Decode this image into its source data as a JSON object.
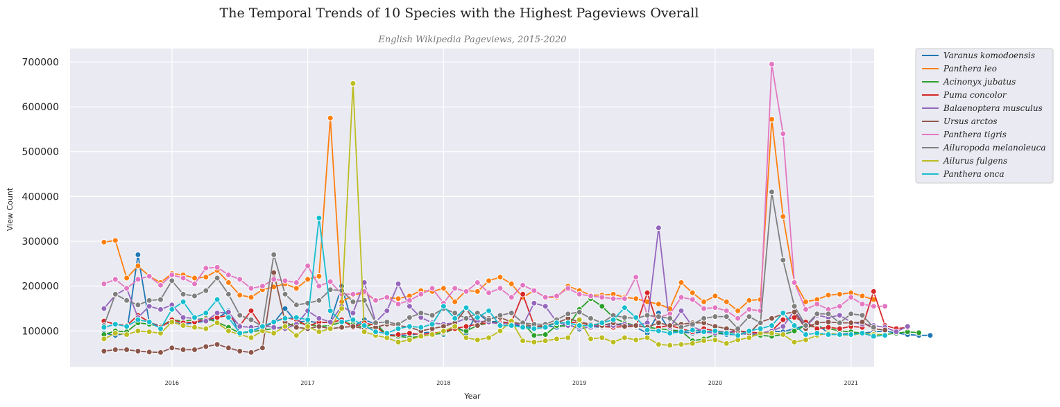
{
  "chart_data": {
    "type": "line",
    "title": "The Temporal Trends of 10 Species with the Highest Pageviews Overall",
    "subtitle": "English Wikipedia Pageviews, 2015-2020",
    "xlabel": "Year",
    "ylabel": "View Count",
    "xlim": [
      2015.25,
      2021.17
    ],
    "ylim": [
      20000,
      730000
    ],
    "grid": true,
    "legend_position": "outside-top-right",
    "x_start": "2015-07",
    "x_ticks": [
      "2016",
      "2017",
      "2018",
      "2019",
      "2020",
      "2021"
    ],
    "y_ticks": [
      "100000",
      "200000",
      "300000",
      "400000",
      "500000",
      "600000",
      "700000"
    ],
    "series": [
      {
        "name": "Varanus komodoensis",
        "color": "#1f77b4",
        "values": [
          95000,
          90000,
          95000,
          270000,
          118000,
          112000,
          120000,
          115000,
          118000,
          122000,
          128000,
          145000,
          95000,
          100000,
          108000,
          118000,
          150000,
          120000,
          122000,
          118000,
          120000,
          200000,
          110000,
          125000,
          115000,
          92000,
          90000,
          90000,
          95000,
          98000,
          92000,
          112000,
          95000,
          140000,
          120000,
          122000,
          115000,
          110000,
          108000,
          112000,
          108000,
          115000,
          104000,
          110000,
          108000,
          112000,
          118000,
          108000,
          95000,
          140000,
          100000,
          98000,
          95000,
          98000,
          95000,
          92000,
          92000,
          95000,
          94000,
          100000,
          98000,
          105000,
          112000,
          115000,
          95000,
          92000,
          95000,
          95000,
          98000,
          100000,
          95000,
          92000,
          90000,
          90000
        ]
      },
      {
        "name": "Panthera leo",
        "color": "#ff7f0e",
        "values": [
          298000,
          302000,
          218000,
          245000,
          222000,
          208000,
          228000,
          225000,
          218000,
          220000,
          235000,
          208000,
          180000,
          175000,
          192000,
          198000,
          205000,
          195000,
          215000,
          222000,
          575000,
          165000,
          180000,
          185000,
          168000,
          175000,
          172000,
          178000,
          190000,
          188000,
          195000,
          165000,
          190000,
          188000,
          212000,
          220000,
          205000,
          175000,
          190000,
          175000,
          175000,
          200000,
          190000,
          180000,
          180000,
          182000,
          175000,
          172000,
          165000,
          160000,
          150000,
          208000,
          185000,
          165000,
          178000,
          165000,
          145000,
          168000,
          170000,
          572000,
          355000,
          210000,
          165000,
          170000,
          180000,
          182000,
          185000,
          178000,
          170000
        ]
      },
      {
        "name": "Acinonyx jubatus",
        "color": "#2ca02c",
        "values": [
          92000,
          100000,
          98000,
          118000,
          115000,
          110000,
          125000,
          122000,
          125000,
          128000,
          120000,
          108000,
          95000,
          98000,
          102000,
          105000,
          110000,
          118000,
          115000,
          110000,
          112000,
          120000,
          115000,
          108000,
          118000,
          90000,
          88000,
          85000,
          88000,
          92000,
          95000,
          105000,
          100000,
          112000,
          118000,
          120000,
          115000,
          118000,
          90000,
          92000,
          112000,
          110000,
          148000,
          172000,
          155000,
          130000,
          118000,
          112000,
          108000,
          105000,
          102000,
          100000,
          78000,
          82000,
          92000,
          98000,
          95000,
          92000,
          90000,
          88000,
          92000,
          100000,
          112000,
          108000,
          105000,
          100000,
          98000,
          95000,
          92000,
          92000,
          95000,
          98000,
          96000
        ]
      },
      {
        "name": "Puma concolor",
        "color": "#d62728",
        "values": [
          122000,
          115000,
          112000,
          135000,
          120000,
          108000,
          125000,
          118000,
          120000,
          125000,
          130000,
          135000,
          112000,
          145000,
          108000,
          120000,
          130000,
          125000,
          110000,
          120000,
          118000,
          125000,
          108000,
          118000,
          112000,
          88000,
          92000,
          95000,
          92000,
          95000,
          98000,
          105000,
          110000,
          115000,
          118000,
          118000,
          120000,
          182000,
          112000,
          108000,
          118000,
          118000,
          120000,
          112000,
          110000,
          108000,
          110000,
          110000,
          185000,
          108000,
          112000,
          105000,
          98000,
          105000,
          100000,
          98000,
          100000,
          98000,
          95000,
          100000,
          125000,
          130000,
          120000,
          105000,
          108000,
          105000,
          110000,
          108000,
          188000,
          112000,
          105000,
          108000
        ]
      },
      {
        "name": "Balaenoptera musculus",
        "color": "#9467bd",
        "values": [
          150000,
          180000,
          195000,
          130000,
          155000,
          148000,
          158000,
          130000,
          128000,
          122000,
          140000,
          142000,
          110000,
          108000,
          112000,
          108000,
          105000,
          115000,
          145000,
          128000,
          120000,
          155000,
          140000,
          208000,
          120000,
          145000,
          205000,
          155000,
          130000,
          118000,
          115000,
          118000,
          128000,
          122000,
          120000,
          115000,
          118000,
          112000,
          162000,
          155000,
          120000,
          112000,
          108000,
          108000,
          115000,
          112000,
          115000,
          112000,
          118000,
          330000,
          108000,
          145000,
          110000,
          98000,
          95000,
          100000,
          95000,
          92000,
          95000,
          100000,
          110000,
          145000,
          110000,
          135000,
          130000,
          135000,
          120000,
          115000,
          112000,
          108000,
          98000,
          110000
        ]
      },
      {
        "name": "Ursus arctos",
        "color": "#8c564b",
        "values": [
          55000,
          58000,
          58000,
          55000,
          53000,
          52000,
          62000,
          58000,
          58000,
          65000,
          70000,
          62000,
          55000,
          52000,
          62000,
          230000,
          120000,
          108000,
          105000,
          110000,
          105000,
          108000,
          110000,
          105000,
          108000,
          115000,
          112000,
          108000,
          100000,
          105000,
          110000,
          118000,
          150000,
          112000,
          128000,
          130000,
          120000,
          115000,
          110000,
          112000,
          118000,
          128000,
          120000,
          115000,
          112000,
          118000,
          110000,
          112000,
          108000,
          118000,
          112000,
          115000,
          118000,
          118000,
          110000,
          105000,
          100000,
          95000,
          120000,
          128000,
          138000,
          142000,
          105000,
          118000,
          120000,
          118000,
          118000,
          120000,
          105000,
          102000
        ]
      },
      {
        "name": "Panthera tigris",
        "color": "#e377c2",
        "values": [
          205000,
          215000,
          195000,
          215000,
          222000,
          202000,
          225000,
          218000,
          205000,
          240000,
          242000,
          225000,
          215000,
          195000,
          200000,
          215000,
          212000,
          208000,
          245000,
          200000,
          210000,
          182000,
          182000,
          188000,
          168000,
          175000,
          160000,
          168000,
          182000,
          195000,
          162000,
          195000,
          188000,
          208000,
          185000,
          195000,
          175000,
          202000,
          190000,
          175000,
          178000,
          195000,
          182000,
          178000,
          175000,
          172000,
          172000,
          220000,
          135000,
          130000,
          138000,
          175000,
          170000,
          150000,
          152000,
          145000,
          128000,
          148000,
          145000,
          695000,
          540000,
          208000,
          148000,
          160000,
          148000,
          155000,
          175000,
          160000,
          155000,
          155000
        ]
      },
      {
        "name": "Ailuropoda melanoleuca",
        "color": "#7f7f7f",
        "values": [
          112000,
          182000,
          168000,
          158000,
          168000,
          170000,
          212000,
          182000,
          178000,
          190000,
          218000,
          182000,
          135000,
          125000,
          110000,
          270000,
          182000,
          158000,
          162000,
          168000,
          192000,
          190000,
          165000,
          168000,
          118000,
          120000,
          115000,
          130000,
          140000,
          135000,
          150000,
          140000,
          128000,
          140000,
          125000,
          135000,
          140000,
          118000,
          115000,
          115000,
          125000,
          138000,
          142000,
          128000,
          118000,
          135000,
          130000,
          128000,
          135000,
          132000,
          128000,
          108000,
          115000,
          128000,
          132000,
          132000,
          105000,
          132000,
          118000,
          410000,
          258000,
          155000,
          112000,
          138000,
          138000,
          118000,
          138000,
          135000,
          108000
        ]
      },
      {
        "name": "Ailurus fulgens",
        "color": "#bcbd22",
        "values": [
          82000,
          95000,
          92000,
          100000,
          98000,
          95000,
          120000,
          112000,
          108000,
          105000,
          118000,
          100000,
          92000,
          85000,
          100000,
          95000,
          110000,
          90000,
          110000,
          98000,
          105000,
          150000,
          652000,
          98000,
          90000,
          85000,
          75000,
          80000,
          88000,
          92000,
          100000,
          110000,
          85000,
          80000,
          85000,
          100000,
          122000,
          78000,
          75000,
          78000,
          82000,
          85000,
          125000,
          82000,
          85000,
          75000,
          85000,
          80000,
          85000,
          70000,
          68000,
          70000,
          72000,
          78000,
          80000,
          72000,
          80000,
          85000,
          95000,
          95000,
          92000,
          75000,
          80000,
          90000,
          95000,
          92000,
          90000,
          95000,
          92000,
          90000
        ]
      },
      {
        "name": "Panthera onca",
        "color": "#17becf",
        "values": [
          108000,
          115000,
          110000,
          125000,
          120000,
          105000,
          148000,
          165000,
          130000,
          140000,
          170000,
          130000,
          95000,
          100000,
          110000,
          120000,
          128000,
          130000,
          125000,
          352000,
          145000,
          120000,
          125000,
          112000,
          98000,
          95000,
          105000,
          110000,
          108000,
          115000,
          155000,
          128000,
          152000,
          130000,
          145000,
          112000,
          112000,
          108000,
          105000,
          108000,
          118000,
          118000,
          112000,
          112000,
          118000,
          125000,
          152000,
          130000,
          102000,
          100000,
          95000,
          98000,
          102000,
          98000,
          100000,
          95000,
          90000,
          100000,
          105000,
          112000,
          140000,
          112000,
          92000,
          95000,
          92000,
          92000,
          92000,
          95000,
          88000,
          90000
        ]
      }
    ]
  }
}
